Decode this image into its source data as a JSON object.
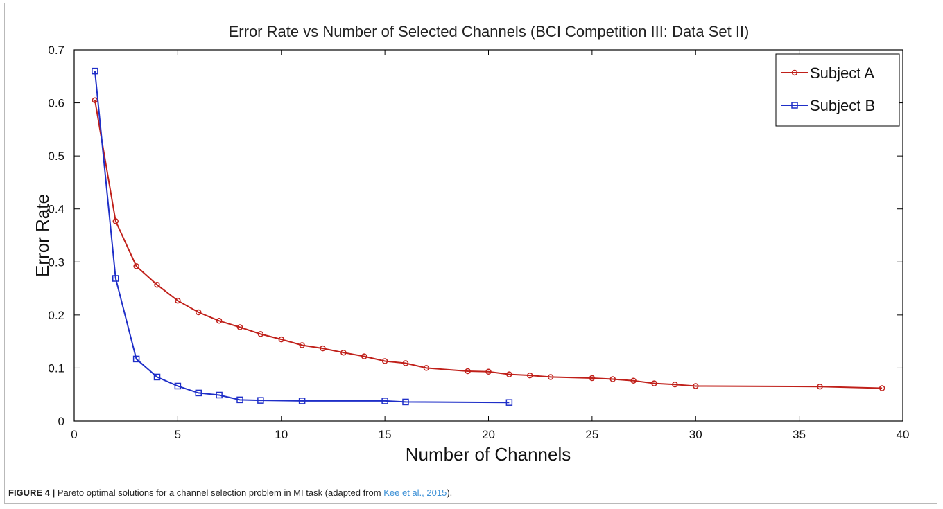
{
  "caption": {
    "label": "FIGURE 4 |",
    "text_before": " Pareto optimal solutions for a channel selection problem in MI task (adapted from ",
    "citation": "Kee et al., 2015",
    "text_after": ")."
  },
  "chart_data": {
    "type": "line",
    "title": "Error Rate vs Number of Selected Channels (BCI Competition III: Data Set II)",
    "xlabel": "Number of Channels",
    "ylabel": "Error Rate",
    "xlim": [
      0,
      40
    ],
    "ylim": [
      0,
      0.7
    ],
    "xticks": [
      0,
      5,
      10,
      15,
      20,
      25,
      30,
      35,
      40
    ],
    "yticks": [
      0,
      0.1,
      0.2,
      0.3,
      0.4,
      0.5,
      0.6,
      0.7
    ],
    "grid": false,
    "legend_position": "top-right",
    "series": [
      {
        "name": "Subject A",
        "color": "#c0201a",
        "marker": "circle",
        "x": [
          1,
          2,
          3,
          4,
          5,
          6,
          7,
          8,
          9,
          10,
          11,
          12,
          13,
          14,
          15,
          16,
          17,
          19,
          20,
          21,
          22,
          23,
          25,
          26,
          27,
          28,
          29,
          30,
          36,
          39
        ],
        "y": [
          0.605,
          0.377,
          0.292,
          0.257,
          0.227,
          0.205,
          0.189,
          0.177,
          0.164,
          0.154,
          0.143,
          0.137,
          0.129,
          0.122,
          0.113,
          0.109,
          0.1,
          0.094,
          0.093,
          0.088,
          0.086,
          0.083,
          0.081,
          0.079,
          0.076,
          0.071,
          0.069,
          0.066,
          0.065,
          0.062
        ]
      },
      {
        "name": "Subject B",
        "color": "#1f2fc8",
        "marker": "square",
        "x": [
          1,
          2,
          3,
          4,
          5,
          6,
          7,
          8,
          9,
          11,
          15,
          16,
          21
        ],
        "y": [
          0.66,
          0.269,
          0.117,
          0.083,
          0.066,
          0.053,
          0.049,
          0.04,
          0.039,
          0.038,
          0.038,
          0.036,
          0.035
        ]
      }
    ]
  }
}
